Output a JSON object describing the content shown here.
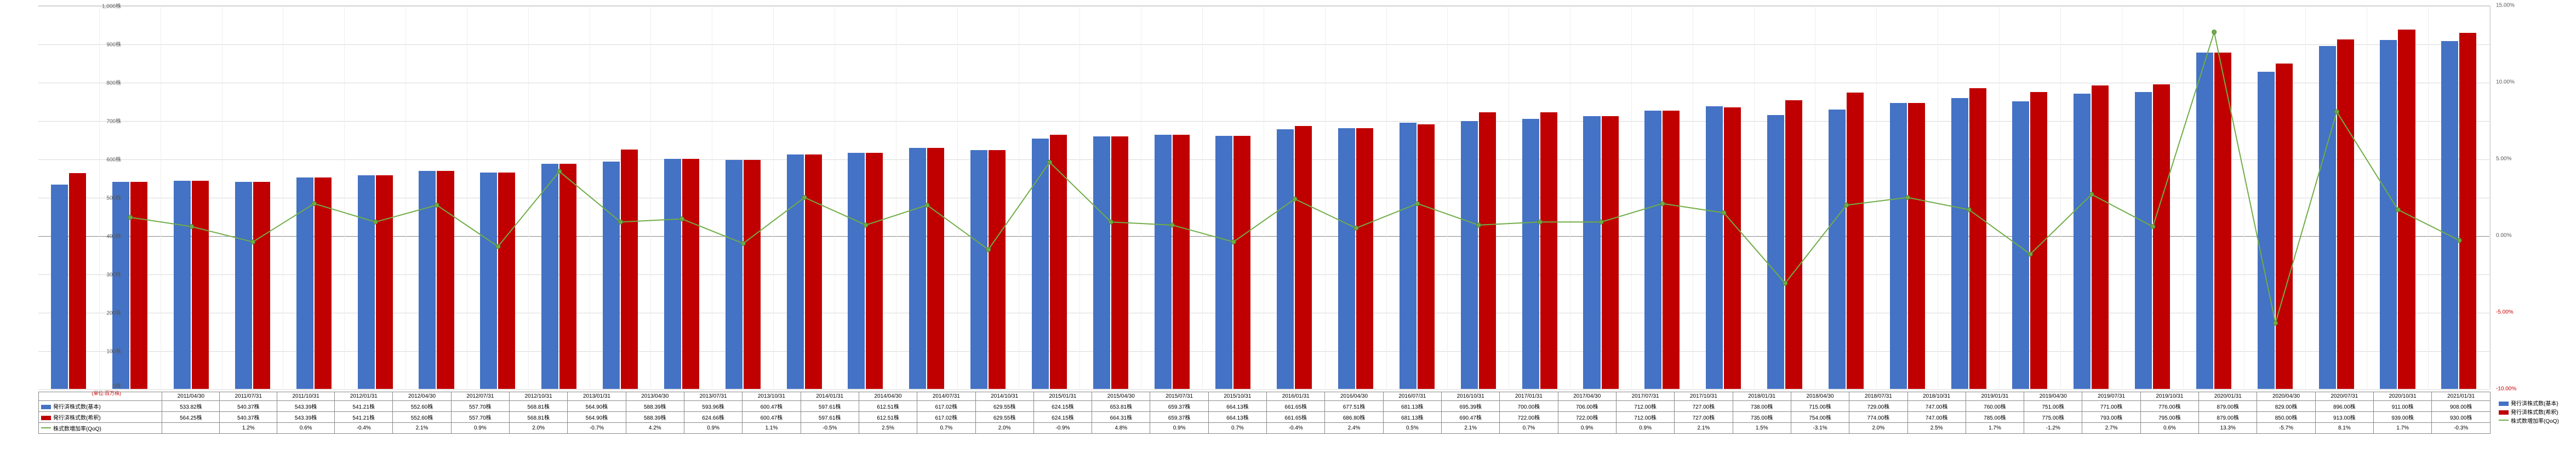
{
  "chart": {
    "type": "bar+line",
    "background_color": "#ffffff",
    "grid_color": "#d9d9d9",
    "bar_colors": {
      "basic": "#4472c4",
      "diluted": "#c00000"
    },
    "line_color": "#70ad47",
    "y_left": {
      "min": 0,
      "max": 1000,
      "step": 100,
      "suffix": "株",
      "unit_label": "(単位:百万株)"
    },
    "y_right": {
      "min": -10,
      "max": 15,
      "step": 5,
      "suffix": "%"
    },
    "baseline_y_right": 0,
    "series_labels": {
      "basic": "発行済株式数(基本)",
      "diluted": "発行済株式数(希釈)",
      "growth": "株式数増加率(QoQ)"
    },
    "periods": [
      "2011/04/30",
      "2011/07/31",
      "2011/10/31",
      "2012/01/31",
      "2012/04/30",
      "2012/07/31",
      "2012/10/31",
      "2013/01/31",
      "2013/04/30",
      "2013/07/31",
      "2013/10/31",
      "2014/01/31",
      "2014/04/30",
      "2014/07/31",
      "2014/10/31",
      "2015/01/31",
      "2015/04/30",
      "2015/07/31",
      "2015/10/31",
      "2016/01/31",
      "2016/04/30",
      "2016/07/31",
      "2016/10/31",
      "2017/01/31",
      "2017/04/30",
      "2017/07/31",
      "2017/10/31",
      "2018/01/31",
      "2018/04/30",
      "2018/07/31",
      "2018/10/31",
      "2019/01/31",
      "2019/04/30",
      "2019/07/31",
      "2019/10/31",
      "2020/01/31",
      "2020/04/30",
      "2020/07/31",
      "2020/10/31",
      "2021/01/31"
    ],
    "basic": [
      533.82,
      540.37,
      543.39,
      541.21,
      552.6,
      557.7,
      568.81,
      564.9,
      588.39,
      593.96,
      600.47,
      597.61,
      612.51,
      617.02,
      629.55,
      624.15,
      653.81,
      659.37,
      664.13,
      661.65,
      677.51,
      681.13,
      695.39,
      700.0,
      706.0,
      712.0,
      727.0,
      738.0,
      715.0,
      729.0,
      747.0,
      760.0,
      751.0,
      771.0,
      776.0,
      879.0,
      829.0,
      896.0,
      911.0,
      908.0
    ],
    "diluted": [
      564.25,
      540.37,
      543.39,
      541.21,
      552.6,
      557.7,
      568.81,
      564.9,
      588.39,
      624.66,
      600.47,
      597.61,
      612.51,
      617.02,
      629.55,
      624.15,
      664.31,
      659.37,
      664.13,
      661.65,
      686.8,
      681.13,
      690.47,
      722.0,
      722.0,
      712.0,
      727.0,
      735.0,
      754.0,
      774.0,
      747.0,
      785.0,
      775.0,
      793.0,
      795.0,
      879.0,
      850.0,
      913.0,
      939.0,
      930.0
    ],
    "growth": [
      null,
      1.2,
      0.6,
      -0.4,
      2.1,
      0.9,
      2.0,
      -0.7,
      4.2,
      0.9,
      1.1,
      -0.5,
      2.5,
      0.7,
      2.0,
      -0.9,
      4.8,
      0.9,
      0.7,
      -0.4,
      2.4,
      0.5,
      2.1,
      0.7,
      0.9,
      0.9,
      2.1,
      1.5,
      -3.1,
      2.0,
      2.5,
      1.7,
      -1.2,
      2.7,
      0.6,
      13.3,
      -5.7,
      8.1,
      1.7,
      -0.3
    ]
  }
}
